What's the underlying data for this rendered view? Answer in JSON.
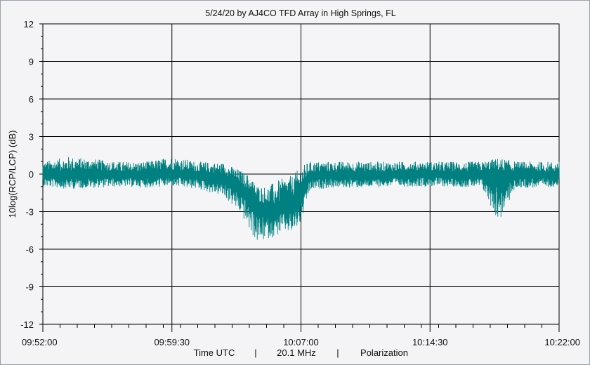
{
  "chart_data": {
    "type": "line",
    "title": "5/24/20  by  AJ4CO TFD Array  in  High Springs, FL",
    "ylabel": "10log(RCP/LCP) (dB)",
    "xlabel_parts": [
      "Time UTC",
      "|",
      "20.1 MHz",
      "|",
      "Polarization"
    ],
    "ylim": [
      -12,
      12
    ],
    "yticks": [
      12,
      9,
      6,
      3,
      0,
      -3,
      -6,
      -9,
      -12
    ],
    "xlim": [
      "09:52:00",
      "10:22:00"
    ],
    "xticks": [
      "09:52:00",
      "09:59:30",
      "10:07:00",
      "10:14:30",
      "10:22:00"
    ],
    "grid": true,
    "series": [
      {
        "color": "#008080",
        "x": [
          "09:52:00",
          "09:53:30",
          "09:55:00",
          "09:56:30",
          "09:58:00",
          "09:59:30",
          "10:01:00",
          "10:02:30",
          "10:03:00",
          "10:03:30",
          "10:04:00",
          "10:04:30",
          "10:05:00",
          "10:05:30",
          "10:06:00",
          "10:06:30",
          "10:07:00",
          "10:07:30",
          "10:08:00",
          "10:09:00",
          "10:10:30",
          "10:12:00",
          "10:13:30",
          "10:14:30",
          "10:16:00",
          "10:17:30",
          "10:18:30",
          "10:19:30",
          "10:21:00",
          "10:22:00"
        ],
        "mean": [
          -0.1,
          -0.1,
          0.0,
          -0.1,
          -0.1,
          0.0,
          -0.1,
          -0.3,
          -0.6,
          -1.0,
          -1.8,
          -2.6,
          -2.9,
          -3.0,
          -2.5,
          -2.4,
          -1.5,
          -0.2,
          -0.1,
          -0.1,
          -0.1,
          -0.1,
          0.0,
          0.0,
          -0.1,
          -0.1,
          -0.1,
          -0.1,
          -0.1,
          -0.1
        ],
        "low": [
          -1.0,
          -1.2,
          -1.1,
          -1.0,
          -1.1,
          -1.0,
          -1.2,
          -1.8,
          -2.5,
          -3.2,
          -4.5,
          -5.6,
          -5.2,
          -5.0,
          -4.6,
          -4.8,
          -4.0,
          -1.4,
          -1.2,
          -1.1,
          -1.1,
          -1.0,
          -1.0,
          -1.0,
          -1.0,
          -1.1,
          -3.9,
          -1.1,
          -1.1,
          -1.0
        ],
        "high": [
          1.0,
          1.4,
          1.2,
          1.0,
          1.0,
          1.4,
          1.0,
          0.9,
          0.6,
          0.3,
          -0.1,
          -0.9,
          -1.0,
          -0.6,
          -0.3,
          -0.1,
          0.6,
          1.0,
          1.0,
          1.0,
          1.0,
          1.0,
          1.0,
          1.0,
          1.0,
          1.0,
          1.3,
          1.0,
          1.0,
          1.0
        ]
      }
    ]
  }
}
